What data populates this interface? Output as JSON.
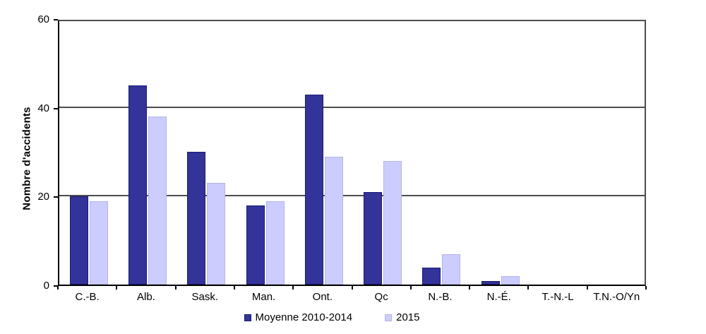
{
  "chart_data": {
    "type": "bar",
    "title": "",
    "xlabel": "",
    "ylabel": "Nombre d'accidents",
    "ylim": [
      0,
      60
    ],
    "yticks": [
      0,
      20,
      40,
      60
    ],
    "grid": true,
    "legend_position": "bottom-center",
    "categories": [
      "C.-B.",
      "Alb.",
      "Sask.",
      "Man.",
      "Ont.",
      "Qc",
      "N.-B.",
      "N.-É.",
      "T.-N.-L",
      "T.N.-O/Yn"
    ],
    "series": [
      {
        "name": "Moyenne 2010-2014",
        "values": [
          20,
          45,
          30,
          18,
          43,
          21,
          4,
          1,
          0,
          0
        ],
        "fill": "#333399",
        "border": "#1A1A75"
      },
      {
        "name": "2015",
        "values": [
          19,
          38,
          23,
          19,
          29,
          28,
          7,
          2,
          0,
          0
        ],
        "fill": "#CCCCFF",
        "border": "#B4B4E6"
      }
    ],
    "colors": {
      "gridline": "#4d4d4d",
      "axis": "#000000",
      "background": "#FFFFFF",
      "text": "#000000"
    }
  }
}
